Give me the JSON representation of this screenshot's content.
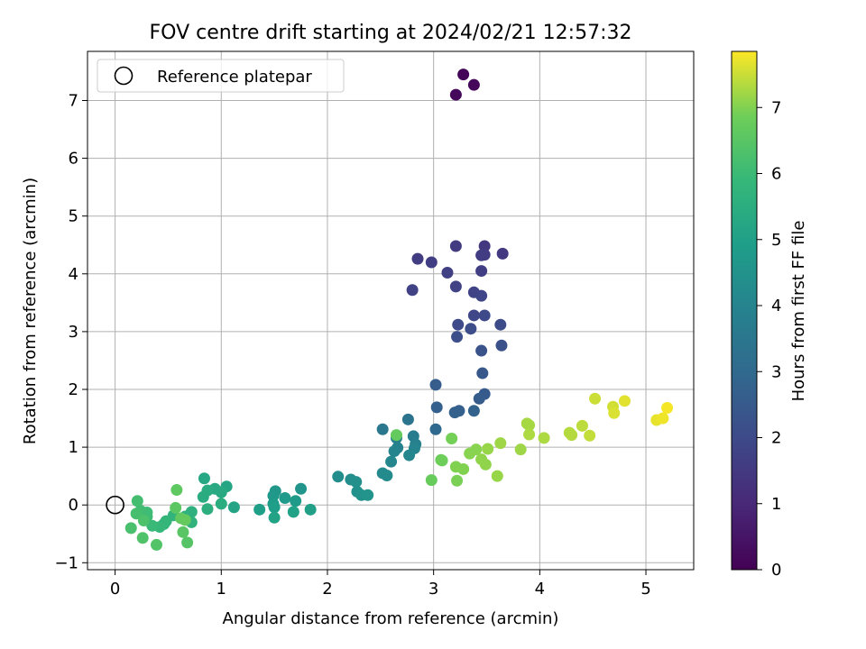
{
  "chart_data": {
    "type": "scatter",
    "title": "FOV centre drift starting at 2024/02/21 12:57:32",
    "xlabel": "Angular distance from reference (arcmin)",
    "ylabel": "Rotation from reference (arcmin)",
    "xlim": [
      -0.26,
      5.45
    ],
    "ylim": [
      -1.12,
      7.85
    ],
    "xticks": [
      "0",
      "1",
      "2",
      "3",
      "4",
      "5"
    ],
    "yticks": [
      "−1",
      "0",
      "1",
      "2",
      "3",
      "4",
      "5",
      "6",
      "7"
    ],
    "grid": true,
    "legend": {
      "position": "top-left",
      "label": "Reference platepar"
    },
    "reference_point": {
      "x": 0,
      "y": 0
    },
    "colorbar": {
      "label": "Hours from first FF file",
      "range": [
        0,
        7.85
      ],
      "ticks": [
        "0",
        "1",
        "2",
        "3",
        "4",
        "5",
        "6",
        "7"
      ],
      "colormap": "viridis"
    },
    "points": [
      {
        "x": 3.28,
        "y": 7.45,
        "h": 0.1
      },
      {
        "x": 3.38,
        "y": 7.27,
        "h": 0.15
      },
      {
        "x": 3.21,
        "y": 7.1,
        "h": 0.2
      },
      {
        "x": 3.21,
        "y": 4.48,
        "h": 1.55
      },
      {
        "x": 3.48,
        "y": 4.48,
        "h": 1.45
      },
      {
        "x": 3.65,
        "y": 4.35,
        "h": 1.5
      },
      {
        "x": 3.48,
        "y": 4.33,
        "h": 1.55
      },
      {
        "x": 3.45,
        "y": 4.32,
        "h": 1.6
      },
      {
        "x": 2.85,
        "y": 4.26,
        "h": 1.6
      },
      {
        "x": 2.98,
        "y": 4.2,
        "h": 1.65
      },
      {
        "x": 3.45,
        "y": 4.05,
        "h": 1.65
      },
      {
        "x": 3.13,
        "y": 4.02,
        "h": 1.7
      },
      {
        "x": 3.21,
        "y": 3.78,
        "h": 1.75
      },
      {
        "x": 2.8,
        "y": 3.72,
        "h": 1.75
      },
      {
        "x": 3.38,
        "y": 3.68,
        "h": 1.8
      },
      {
        "x": 3.45,
        "y": 3.62,
        "h": 1.85
      },
      {
        "x": 3.38,
        "y": 3.28,
        "h": 1.9
      },
      {
        "x": 3.48,
        "y": 3.28,
        "h": 1.95
      },
      {
        "x": 3.23,
        "y": 3.12,
        "h": 2.0
      },
      {
        "x": 3.63,
        "y": 3.12,
        "h": 2.05
      },
      {
        "x": 3.35,
        "y": 3.05,
        "h": 2.1
      },
      {
        "x": 3.22,
        "y": 2.91,
        "h": 2.15
      },
      {
        "x": 3.64,
        "y": 2.76,
        "h": 2.2
      },
      {
        "x": 3.45,
        "y": 2.67,
        "h": 2.3
      },
      {
        "x": 3.46,
        "y": 2.28,
        "h": 2.45
      },
      {
        "x": 3.02,
        "y": 2.08,
        "h": 2.6
      },
      {
        "x": 3.48,
        "y": 1.92,
        "h": 2.5
      },
      {
        "x": 3.43,
        "y": 1.84,
        "h": 2.55
      },
      {
        "x": 3.03,
        "y": 1.69,
        "h": 2.7
      },
      {
        "x": 3.24,
        "y": 1.63,
        "h": 2.65
      },
      {
        "x": 3.2,
        "y": 1.6,
        "h": 2.75
      },
      {
        "x": 3.38,
        "y": 1.63,
        "h": 2.8
      },
      {
        "x": 3.02,
        "y": 1.31,
        "h": 3.0
      },
      {
        "x": 2.76,
        "y": 1.48,
        "h": 3.4
      },
      {
        "x": 2.52,
        "y": 1.31,
        "h": 3.5
      },
      {
        "x": 2.81,
        "y": 1.19,
        "h": 3.7
      },
      {
        "x": 2.65,
        "y": 1.16,
        "h": 3.8
      },
      {
        "x": 2.83,
        "y": 1.05,
        "h": 3.85
      },
      {
        "x": 2.66,
        "y": 0.99,
        "h": 3.9
      },
      {
        "x": 2.82,
        "y": 0.98,
        "h": 4.0
      },
      {
        "x": 2.63,
        "y": 0.93,
        "h": 4.0
      },
      {
        "x": 2.77,
        "y": 0.86,
        "h": 4.05
      },
      {
        "x": 2.6,
        "y": 0.75,
        "h": 4.1
      },
      {
        "x": 2.52,
        "y": 0.55,
        "h": 4.2
      },
      {
        "x": 2.56,
        "y": 0.51,
        "h": 4.25
      },
      {
        "x": 2.1,
        "y": 0.49,
        "h": 4.3
      },
      {
        "x": 2.22,
        "y": 0.44,
        "h": 4.35
      },
      {
        "x": 2.27,
        "y": 0.4,
        "h": 4.4
      },
      {
        "x": 2.28,
        "y": 0.23,
        "h": 4.45
      },
      {
        "x": 2.32,
        "y": 0.17,
        "h": 4.5
      },
      {
        "x": 2.38,
        "y": 0.17,
        "h": 4.55
      },
      {
        "x": 1.75,
        "y": 0.28,
        "h": 4.6
      },
      {
        "x": 1.51,
        "y": 0.24,
        "h": 4.65
      },
      {
        "x": 1.49,
        "y": 0.16,
        "h": 4.7
      },
      {
        "x": 1.6,
        "y": 0.12,
        "h": 4.75
      },
      {
        "x": 1.7,
        "y": 0.07,
        "h": 4.8
      },
      {
        "x": 1.49,
        "y": 0.02,
        "h": 4.85
      },
      {
        "x": 1.5,
        "y": -0.04,
        "h": 4.9
      },
      {
        "x": 1.36,
        "y": -0.08,
        "h": 4.95
      },
      {
        "x": 1.84,
        "y": -0.08,
        "h": 5.0
      },
      {
        "x": 1.68,
        "y": -0.12,
        "h": 5.05
      },
      {
        "x": 1.5,
        "y": -0.22,
        "h": 5.1
      },
      {
        "x": 1.12,
        "y": -0.04,
        "h": 5.15
      },
      {
        "x": 1.05,
        "y": 0.32,
        "h": 5.2
      },
      {
        "x": 0.84,
        "y": 0.46,
        "h": 5.25
      },
      {
        "x": 0.94,
        "y": 0.28,
        "h": 5.3
      },
      {
        "x": 1.0,
        "y": 0.22,
        "h": 5.35
      },
      {
        "x": 0.87,
        "y": 0.25,
        "h": 5.4
      },
      {
        "x": 0.83,
        "y": 0.14,
        "h": 5.45
      },
      {
        "x": 1.0,
        "y": 0.02,
        "h": 5.5
      },
      {
        "x": 0.87,
        "y": -0.07,
        "h": 5.55
      },
      {
        "x": 0.72,
        "y": -0.12,
        "h": 5.6
      },
      {
        "x": 0.66,
        "y": -0.2,
        "h": 5.65
      },
      {
        "x": 0.72,
        "y": -0.3,
        "h": 5.7
      },
      {
        "x": 0.55,
        "y": -0.18,
        "h": 5.75
      },
      {
        "x": 0.48,
        "y": -0.28,
        "h": 5.8
      },
      {
        "x": 0.46,
        "y": -0.33,
        "h": 5.85
      },
      {
        "x": 0.42,
        "y": -0.38,
        "h": 5.9
      },
      {
        "x": 0.35,
        "y": -0.36,
        "h": 5.95
      },
      {
        "x": 0.3,
        "y": -0.2,
        "h": 6.0
      },
      {
        "x": 0.3,
        "y": -0.13,
        "h": 6.05
      },
      {
        "x": 0.24,
        "y": -0.1,
        "h": 6.1
      },
      {
        "x": 0.21,
        "y": 0.07,
        "h": 6.15
      },
      {
        "x": 0.2,
        "y": -0.15,
        "h": 6.2
      },
      {
        "x": 0.15,
        "y": -0.4,
        "h": 6.25
      },
      {
        "x": 0.27,
        "y": -0.27,
        "h": 6.3
      },
      {
        "x": 0.26,
        "y": -0.57,
        "h": 6.35
      },
      {
        "x": 0.39,
        "y": -0.69,
        "h": 6.4
      },
      {
        "x": 0.68,
        "y": -0.65,
        "h": 6.45
      },
      {
        "x": 0.64,
        "y": -0.47,
        "h": 6.5
      },
      {
        "x": 0.57,
        "y": -0.05,
        "h": 6.55
      },
      {
        "x": 0.58,
        "y": 0.26,
        "h": 6.6
      },
      {
        "x": 0.62,
        "y": -0.23,
        "h": 6.65
      },
      {
        "x": 0.66,
        "y": -0.26,
        "h": 6.7
      },
      {
        "x": 2.65,
        "y": 1.21,
        "h": 6.7
      },
      {
        "x": 2.98,
        "y": 0.43,
        "h": 6.75
      },
      {
        "x": 3.07,
        "y": 0.78,
        "h": 6.8
      },
      {
        "x": 3.08,
        "y": 0.77,
        "h": 6.85
      },
      {
        "x": 3.17,
        "y": 1.15,
        "h": 6.9
      },
      {
        "x": 3.22,
        "y": 0.42,
        "h": 6.95
      },
      {
        "x": 3.21,
        "y": 0.66,
        "h": 7.0
      },
      {
        "x": 3.28,
        "y": 0.62,
        "h": 7.0
      },
      {
        "x": 3.34,
        "y": 0.89,
        "h": 7.05
      },
      {
        "x": 3.4,
        "y": 0.96,
        "h": 7.05
      },
      {
        "x": 3.45,
        "y": 0.79,
        "h": 7.1
      },
      {
        "x": 3.49,
        "y": 0.7,
        "h": 7.1
      },
      {
        "x": 3.51,
        "y": 0.97,
        "h": 7.15
      },
      {
        "x": 3.6,
        "y": 0.5,
        "h": 7.15
      },
      {
        "x": 3.63,
        "y": 1.07,
        "h": 7.2
      },
      {
        "x": 3.82,
        "y": 0.96,
        "h": 7.2
      },
      {
        "x": 3.88,
        "y": 1.41,
        "h": 7.25
      },
      {
        "x": 3.9,
        "y": 1.38,
        "h": 7.25
      },
      {
        "x": 3.9,
        "y": 1.22,
        "h": 7.3
      },
      {
        "x": 4.04,
        "y": 1.16,
        "h": 7.3
      },
      {
        "x": 4.28,
        "y": 1.25,
        "h": 7.35
      },
      {
        "x": 4.3,
        "y": 1.21,
        "h": 7.35
      },
      {
        "x": 4.4,
        "y": 1.37,
        "h": 7.4
      },
      {
        "x": 4.47,
        "y": 1.2,
        "h": 7.45
      },
      {
        "x": 4.52,
        "y": 1.84,
        "h": 7.5
      },
      {
        "x": 4.69,
        "y": 1.7,
        "h": 7.55
      },
      {
        "x": 4.7,
        "y": 1.59,
        "h": 7.6
      },
      {
        "x": 4.8,
        "y": 1.8,
        "h": 7.65
      },
      {
        "x": 5.1,
        "y": 1.47,
        "h": 7.7
      },
      {
        "x": 5.16,
        "y": 1.5,
        "h": 7.75
      },
      {
        "x": 5.2,
        "y": 1.68,
        "h": 7.8
      }
    ]
  }
}
